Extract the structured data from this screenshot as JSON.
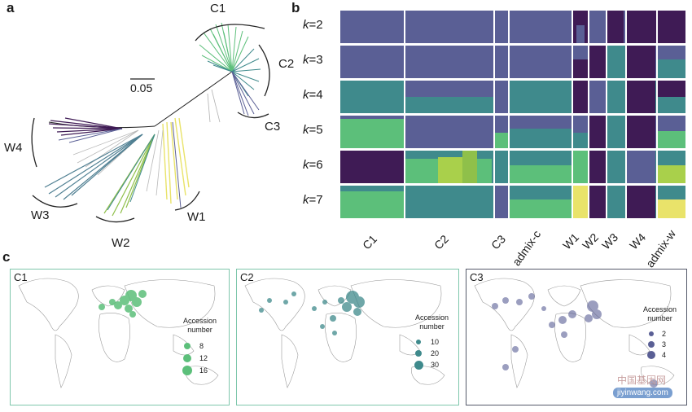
{
  "colors": {
    "purple": "#3f1b55",
    "slate": "#5a5f95",
    "teal": "#3f8a8c",
    "green": "#5cbf7a",
    "lime": "#a9d04b",
    "yellow": "#e9e36a",
    "c1_border": "#7fc7ac",
    "c2_border": "#7fc7ac",
    "c3_border": "#555a6a"
  },
  "panel_a": {
    "letter": "a",
    "scale_label": "0.05",
    "clades": [
      "C1",
      "C2",
      "C3",
      "W4",
      "W3",
      "W2",
      "W1"
    ]
  },
  "panel_b": {
    "letter": "b",
    "k_labels": [
      {
        "k": "k",
        "eq": "=2"
      },
      {
        "k": "k",
        "eq": "=3"
      },
      {
        "k": "k",
        "eq": "=4"
      },
      {
        "k": "k",
        "eq": "=5"
      },
      {
        "k": "k",
        "eq": "=6"
      },
      {
        "k": "k",
        "eq": "=7"
      }
    ],
    "groups": [
      "C1",
      "C2",
      "C3",
      "admix-c",
      "W1",
      "W2",
      "W3",
      "W4",
      "admix-w"
    ]
  },
  "panel_c": {
    "letter": "c",
    "maps": [
      {
        "tag": "C1",
        "legend_title": "Accession number",
        "values": [
          "8",
          "12",
          "16"
        ],
        "color": "#5cbf7a"
      },
      {
        "tag": "C2",
        "legend_title": "Accession number",
        "values": [
          "10",
          "20",
          "30"
        ],
        "color": "#3f8a8c"
      },
      {
        "tag": "C3",
        "legend_title": "Accession number",
        "values": [
          "2",
          "3",
          "4"
        ],
        "color": "#5a5f95"
      }
    ]
  },
  "watermark": {
    "line1": "中国基因网",
    "line2": "jiyinwang.com"
  }
}
